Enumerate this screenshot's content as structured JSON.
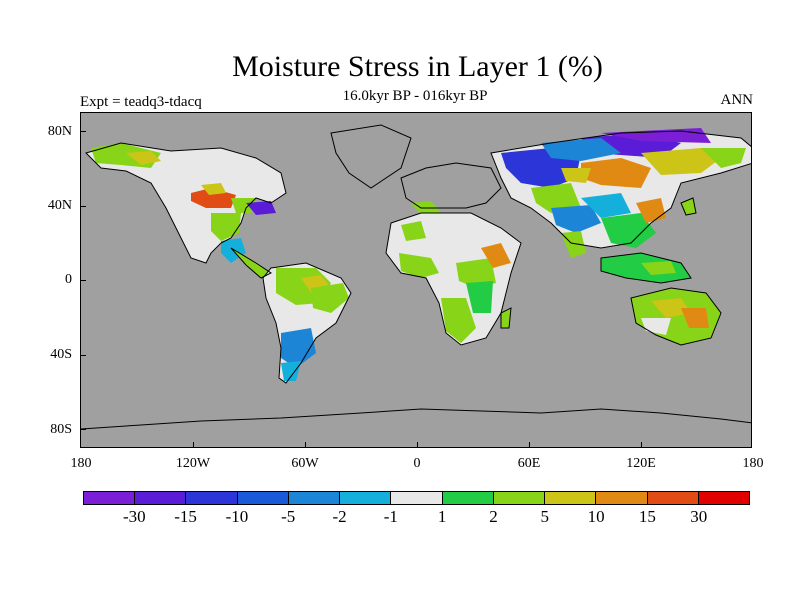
{
  "title": "Moisture Stress in Layer 1 (%)",
  "subtitle": "16.0kyr BP - 016kyr BP",
  "left_label": "Expt = teadq3-tdacq",
  "right_label": "ANN",
  "colors": {
    "ocean": "#a0a0a0",
    "coastline": "#000000"
  },
  "lat_labels": [
    "80N",
    "40N",
    "0",
    "40S",
    "80S"
  ],
  "lon_labels": [
    "180",
    "120W",
    "60W",
    "0",
    "60E",
    "120E",
    "180"
  ],
  "colorbar": {
    "colors": [
      "#7b1fd6",
      "#5a1cd6",
      "#2b35d8",
      "#1a5ad8",
      "#1d85d6",
      "#14b0db",
      "#e8e8e8",
      "#22cc44",
      "#88d418",
      "#ccc416",
      "#e08a14",
      "#e04c14",
      "#e00000"
    ],
    "labels": [
      "-30",
      "-15",
      "-10",
      "-5",
      "-2",
      "-1",
      "1",
      "2",
      "5",
      "10",
      "15",
      "30"
    ]
  }
}
